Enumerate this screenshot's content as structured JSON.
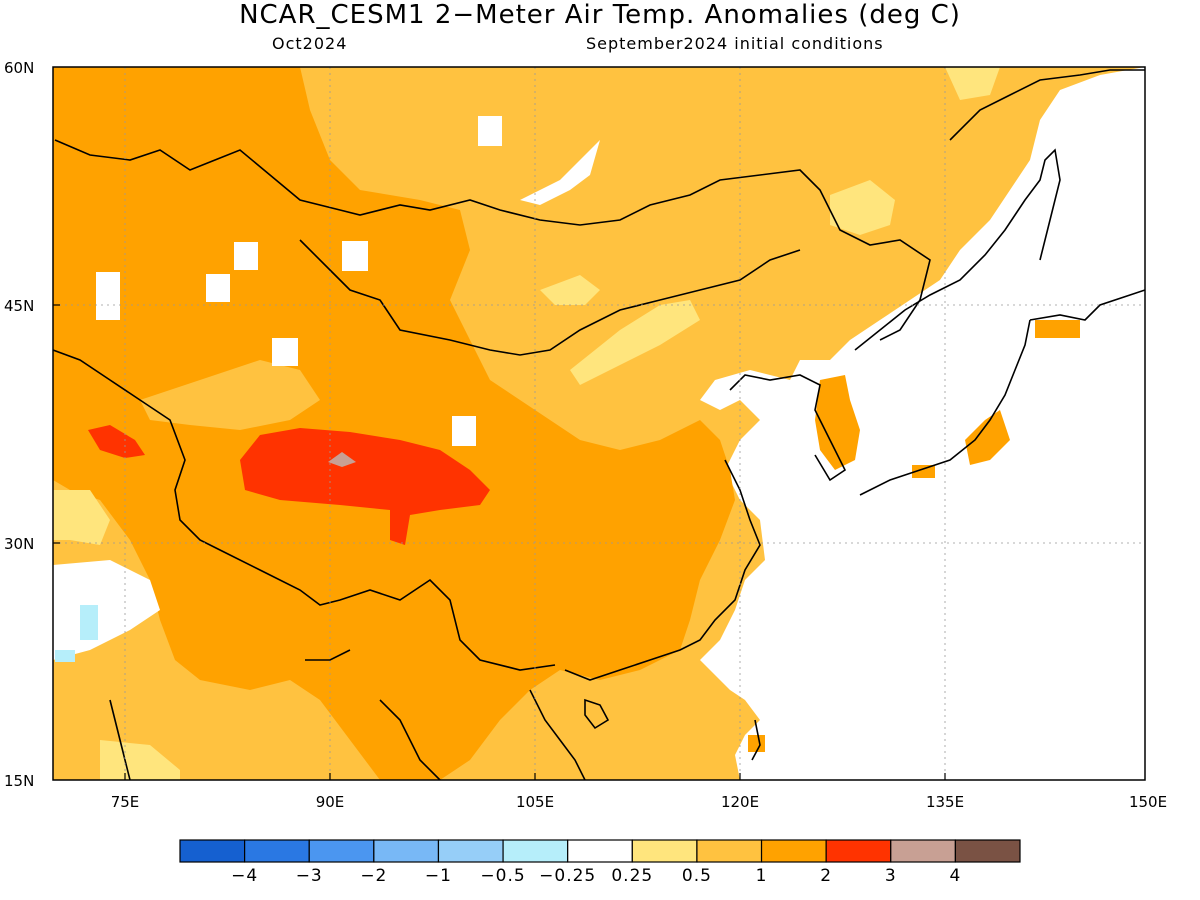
{
  "header": {
    "title": "NCAR_CESM1 2−Meter Air Temp. Anomalies (deg C)",
    "subtitle_left": "Oct2024",
    "subtitle_right": "September2024 initial conditions"
  },
  "map": {
    "lat_labels": [
      "60N",
      "45N",
      "30N",
      "15N"
    ],
    "lon_labels": [
      "75E",
      "90E",
      "105E",
      "120E",
      "135E",
      "150E"
    ]
  },
  "legend": {
    "colors": [
      "#1560d0",
      "#2a78e3",
      "#4b96f0",
      "#78b8f6",
      "#96cef8",
      "#b6eefa",
      "#ffffff",
      "#ffe57d",
      "#ffc240",
      "#ffa200",
      "#ff3300",
      "#c8a094",
      "#7a5244"
    ],
    "labels": [
      "−4",
      "−3",
      "−2",
      "−1",
      "−0.5",
      "−0.25",
      "0.25",
      "0.5",
      "1",
      "2",
      "3",
      "4"
    ]
  }
}
